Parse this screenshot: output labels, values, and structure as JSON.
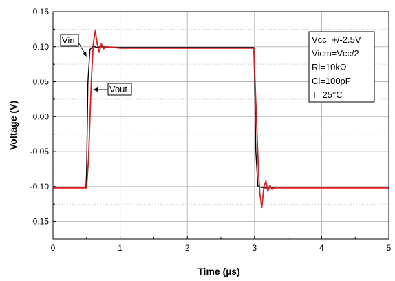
{
  "chart_data": {
    "type": "line",
    "xlabel": "Time (µs)",
    "ylabel": "Voltage (V)",
    "xlim": [
      0,
      5
    ],
    "ylim": [
      -0.175,
      0.15
    ],
    "x_ticks": [
      "0",
      "1",
      "2",
      "3",
      "4",
      "5"
    ],
    "y_ticks": [
      "0.15",
      "0.10",
      "0.05",
      "0.00",
      "-0.05",
      "-0.10",
      "-0.15"
    ],
    "grid": true,
    "series": [
      {
        "name": "Vin",
        "color": "#000000",
        "x": [
          0,
          0.49,
          0.5,
          0.52,
          0.55,
          0.6,
          0.65,
          0.7,
          1.0,
          2.0,
          2.99,
          3.0,
          3.02,
          3.05,
          3.1,
          3.15,
          3.3,
          4.0,
          5.0
        ],
        "y": [
          -0.101,
          -0.101,
          -0.08,
          0.05,
          0.096,
          0.101,
          0.099,
          0.1,
          0.099,
          0.099,
          0.099,
          0.06,
          -0.05,
          -0.099,
          -0.101,
          -0.102,
          -0.101,
          -0.101,
          -0.101
        ]
      },
      {
        "name": "Vout",
        "color": "#e31a1c",
        "x": [
          0,
          0.5,
          0.53,
          0.57,
          0.6,
          0.63,
          0.66,
          0.69,
          0.72,
          0.75,
          0.8,
          1.0,
          2.0,
          2.99,
          3.02,
          3.06,
          3.08,
          3.11,
          3.14,
          3.17,
          3.2,
          3.23,
          3.26,
          3.3,
          4.0,
          5.0
        ],
        "y": [
          -0.102,
          -0.102,
          -0.06,
          0.05,
          0.105,
          0.123,
          0.103,
          0.092,
          0.104,
          0.097,
          0.1,
          0.098,
          0.098,
          0.098,
          0.02,
          -0.08,
          -0.11,
          -0.13,
          -0.1,
          -0.092,
          -0.107,
          -0.098,
          -0.104,
          -0.102,
          -0.102,
          -0.102
        ]
      }
    ],
    "annotations": {
      "vin_label": "Vin",
      "vout_label": "Vout",
      "conditions": [
        "Vcc=+/-2.5V",
        "Vicm=Vcc/2",
        "Rl=10kΩ",
        "Cl=100pF",
        "T=25°C"
      ]
    }
  }
}
